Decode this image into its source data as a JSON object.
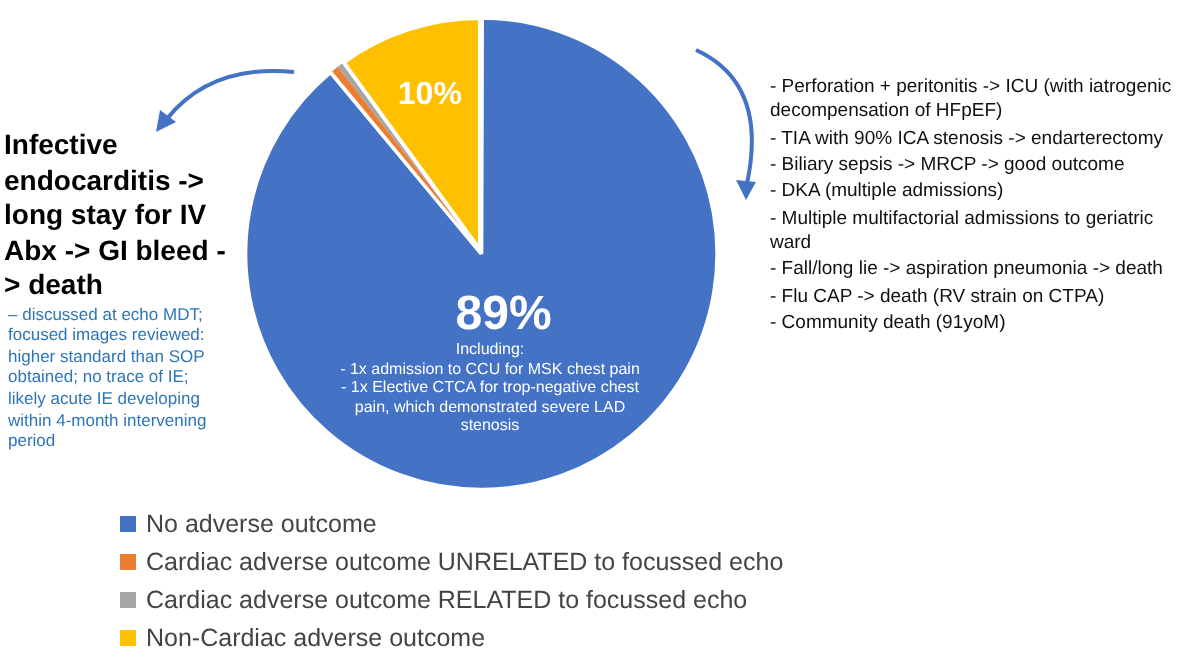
{
  "chart_data": {
    "type": "pie",
    "categories": [
      "No adverse outcome",
      "Cardiac adverse outcome UNRELATED to focussed echo",
      "Cardiac adverse outcome RELATED to focussed echo",
      "Non-Cardiac adverse outcome"
    ],
    "values": [
      89,
      0.5,
      0.5,
      10
    ],
    "colors": [
      "#4472c4",
      "#ed7d31",
      "#a5a5a5",
      "#ffc000"
    ],
    "value_labels": [
      "89%",
      null,
      null,
      "10%"
    ],
    "legend": "bottom left",
    "annotations": [
      "Including:\n- 1x admission to CCU for MSK chest pain\n- 1x Elective CTCA for trop-negative chest pain, which demonstrated severe LAD stenosis",
      "Infective endocarditis -> long stay for IV Abx -> GI bleed -> death",
      "– discussed at echo MDT; focused images reviewed: higher standard than SOP obtained; no trace of IE; likely acute IE developing within 4-month intervening period",
      "- Perforation + peritonitis -> ICU (with iatrogenic decompensation of HFpEF)",
      "- TIA with 90% ICA stenosis -> endarterectomy",
      "- Biliary sepsis -> MRCP -> good outcome",
      "- DKA (multiple admissions)",
      "- Multiple multifactorial admissions to geriatric ward",
      "- Fall/long lie -> aspiration pneumonia -> death",
      "- Flu CAP -> death (RV strain on CTPA)",
      "- Community death (91yoM)"
    ]
  }
}
